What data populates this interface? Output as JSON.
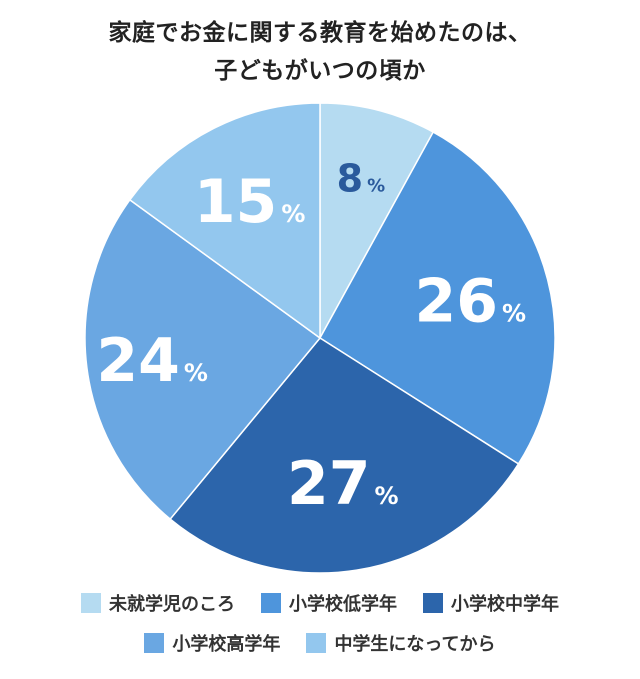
{
  "title": {
    "line1": "家庭でお金に関する教育を始めたのは、",
    "line2": "子どもがいつの頃か"
  },
  "percent_unit": "%",
  "chart_data": {
    "type": "pie",
    "slices": [
      {
        "label": "未就学児のころ",
        "value": 8,
        "color": "#b5dbf1",
        "text_color": "#2a5a9c"
      },
      {
        "label": "小学校低学年",
        "value": 26,
        "color": "#4e95dc",
        "text_color": "#ffffff"
      },
      {
        "label": "小学校中学年",
        "value": 27,
        "color": "#2c65ab",
        "text_color": "#ffffff"
      },
      {
        "label": "小学校高学年",
        "value": 24,
        "color": "#6aa7e2",
        "text_color": "#ffffff"
      },
      {
        "label": "中学生になってから",
        "value": 15,
        "color": "#93c7ee",
        "text_color": "#ffffff"
      }
    ],
    "legend_rows": [
      [
        0,
        1,
        2
      ],
      [
        3,
        4
      ]
    ]
  }
}
